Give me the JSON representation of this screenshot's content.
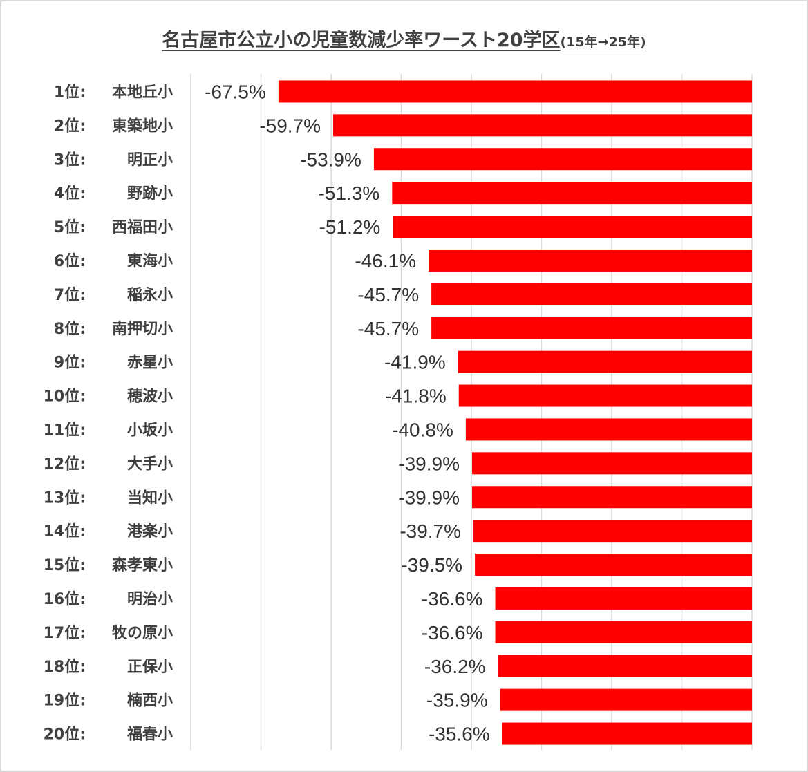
{
  "chart_data": {
    "type": "bar",
    "orientation": "horizontal",
    "title": "名古屋市公立小の児童数減少率ワースト20学区",
    "subtitle": "(15年→25年)",
    "xlabel": "",
    "ylabel": "",
    "xlim": [
      -80,
      0
    ],
    "grid": true,
    "legend": "none",
    "bar_color": "#ff0000",
    "categories": [
      {
        "rank": "1位:",
        "name": "本地丘小"
      },
      {
        "rank": "2位:",
        "name": "東築地小"
      },
      {
        "rank": "3位:",
        "name": "明正小"
      },
      {
        "rank": "4位:",
        "name": "野跡小"
      },
      {
        "rank": "5位:",
        "name": "西福田小"
      },
      {
        "rank": "6位:",
        "name": "東海小"
      },
      {
        "rank": "7位:",
        "name": "稲永小"
      },
      {
        "rank": "8位:",
        "name": "南押切小"
      },
      {
        "rank": "9位:",
        "name": "赤星小"
      },
      {
        "rank": "10位:",
        "name": "穂波小"
      },
      {
        "rank": "11位:",
        "name": "小坂小"
      },
      {
        "rank": "12位:",
        "name": "大手小"
      },
      {
        "rank": "13位:",
        "name": "当知小"
      },
      {
        "rank": "14位:",
        "name": "港楽小"
      },
      {
        "rank": "15位:",
        "name": "森孝東小"
      },
      {
        "rank": "16位:",
        "name": "明治小"
      },
      {
        "rank": "17位:",
        "name": "牧の原小"
      },
      {
        "rank": "18位:",
        "name": "正保小"
      },
      {
        "rank": "19位:",
        "name": "楠西小"
      },
      {
        "rank": "20位:",
        "name": "福春小"
      }
    ],
    "values": [
      -67.5,
      -59.7,
      -53.9,
      -51.3,
      -51.2,
      -46.1,
      -45.7,
      -45.7,
      -41.9,
      -41.8,
      -40.8,
      -39.9,
      -39.9,
      -39.7,
      -39.5,
      -36.6,
      -36.6,
      -36.2,
      -35.9,
      -35.6
    ],
    "labels": [
      "-67.5%",
      "-59.7%",
      "-53.9%",
      "-51.3%",
      "-51.2%",
      "-46.1%",
      "-45.7%",
      "-45.7%",
      "-41.9%",
      "-41.8%",
      "-40.8%",
      "-39.9%",
      "-39.9%",
      "-39.7%",
      "-39.5%",
      "-36.6%",
      "-36.6%",
      "-36.2%",
      "-35.9%",
      "-35.6%"
    ]
  }
}
